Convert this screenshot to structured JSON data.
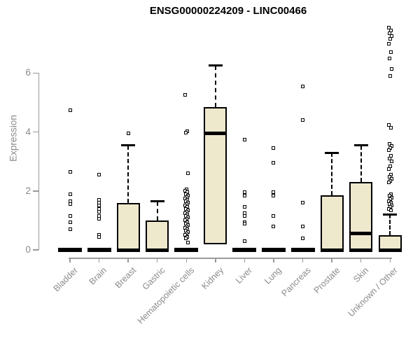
{
  "title": "ENSG00000224209 - LINC00466",
  "colors": {
    "box_fill": "#EEE8CD",
    "box_border": "#000000",
    "median": "#000000",
    "axis": "#9A9A9A",
    "tick_label": "#8B8B8B",
    "title_text": "#000000",
    "outlier_fill": "#FFFFFF"
  },
  "chart_data": {
    "type": "boxplot",
    "title": "ENSG00000224209 - LINC00466",
    "xlabel": "",
    "ylabel": "Expression",
    "ylim": [
      0,
      7.8
    ],
    "yticks": [
      0,
      2,
      4,
      6
    ],
    "grid": false,
    "legend": null,
    "categories": [
      "Bladder",
      "Brain",
      "Breast",
      "Gastric",
      "Hematopoietic cells",
      "Kidney",
      "Liver",
      "Lung",
      "Pancreas",
      "Prostate",
      "Skin",
      "Unknown / Other"
    ],
    "boxes": [
      {
        "category": "Bladder",
        "q1": 0,
        "median": 0,
        "q3": 0,
        "whisker_high": null,
        "outliers": [
          4.75,
          2.65,
          1.9,
          1.65,
          1.55,
          1.15,
          0.95,
          0.7
        ]
      },
      {
        "category": "Brain",
        "q1": 0,
        "median": 0,
        "q3": 0,
        "whisker_high": null,
        "outliers": [
          2.55,
          1.7,
          1.6,
          1.5,
          1.4,
          1.3,
          1.15,
          1.05,
          0.5,
          0.45
        ]
      },
      {
        "category": "Breast",
        "q1": 0,
        "median": 0,
        "q3": 1.6,
        "whisker_high": 3.55,
        "outliers": [
          3.95
        ]
      },
      {
        "category": "Gastric",
        "q1": 0,
        "median": 0,
        "q3": 1.0,
        "whisker_high": 1.65,
        "outliers": []
      },
      {
        "category": "Hematopoietic cells",
        "q1": 0,
        "median": 0,
        "q3": 0,
        "whisker_high": null,
        "outliers": [
          5.25,
          4.02,
          3.98,
          2.6,
          2.05,
          2.0,
          1.95,
          1.9,
          1.85,
          1.8,
          1.75,
          1.7,
          1.65,
          1.6,
          1.55,
          1.5,
          1.45,
          1.4,
          1.35,
          1.3,
          1.25,
          1.2,
          1.15,
          1.1,
          1.05,
          1.0,
          0.95,
          0.9,
          0.85,
          0.8,
          0.75,
          0.7,
          0.65,
          0.6,
          0.55,
          0.5,
          0.45,
          0.4,
          0.25
        ]
      },
      {
        "category": "Kidney",
        "q1": 0.2,
        "median": 3.95,
        "q3": 4.85,
        "whisker_high": 6.25,
        "outliers": []
      },
      {
        "category": "Liver",
        "q1": 0,
        "median": 0,
        "q3": 0,
        "whisker_high": null,
        "outliers": [
          3.75,
          1.95,
          1.85,
          1.45,
          1.25,
          1.15,
          0.95,
          0.9,
          0.3
        ]
      },
      {
        "category": "Lung",
        "q1": 0,
        "median": 0,
        "q3": 0,
        "whisker_high": null,
        "outliers": [
          3.45,
          2.95,
          1.95,
          1.85,
          1.15,
          0.8
        ]
      },
      {
        "category": "Pancreas",
        "q1": 0,
        "median": 0,
        "q3": 0,
        "whisker_high": null,
        "outliers": [
          5.55,
          4.4,
          1.6,
          0.8,
          0.4
        ]
      },
      {
        "category": "Prostate",
        "q1": 0,
        "median": 0,
        "q3": 1.85,
        "whisker_high": 3.3,
        "outliers": []
      },
      {
        "category": "Skin",
        "q1": 0,
        "median": 0.55,
        "q3": 2.3,
        "whisker_high": 3.55,
        "thick_bottom": true,
        "outliers": []
      },
      {
        "category": "Unknown / Other",
        "q1": 0,
        "median": 0,
        "q3": 0.5,
        "whisker_high": 1.2,
        "outliers": [
          7.55,
          7.45,
          7.35,
          7.25,
          7.15,
          7.0,
          6.7,
          6.5,
          6.15,
          5.9,
          4.25,
          4.15,
          3.6,
          3.52,
          3.45,
          3.38,
          3.2,
          3.1,
          3.0,
          2.85,
          2.75,
          2.55,
          2.48,
          2.42,
          2.35,
          2.3,
          1.9,
          1.85,
          1.78,
          1.72,
          1.65,
          1.6,
          1.55,
          1.5,
          1.45,
          1.4,
          1.35
        ]
      }
    ]
  }
}
